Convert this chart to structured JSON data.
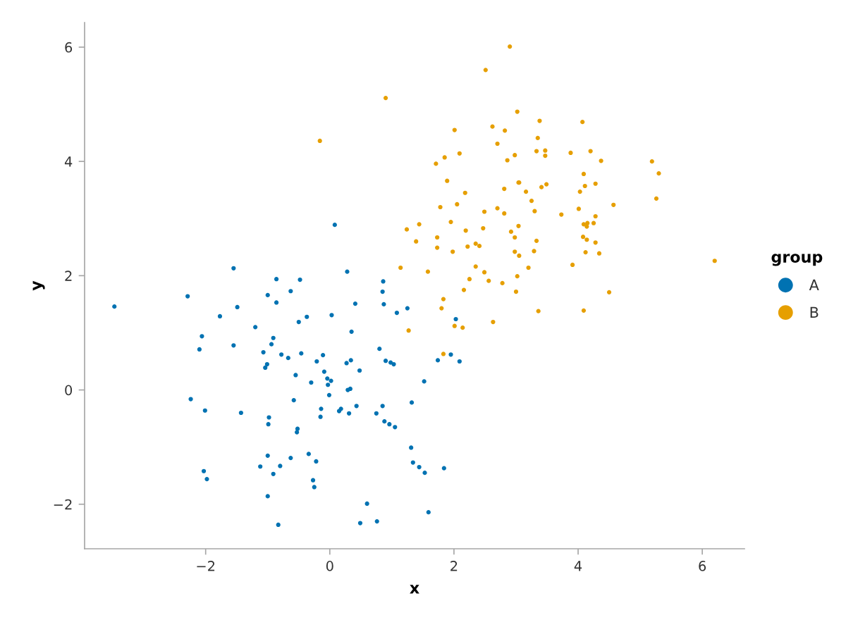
{
  "chart_data": {
    "type": "scatter",
    "xlabel": "x",
    "ylabel": "y",
    "legend_title": "group",
    "legend": "right",
    "marker": "circle",
    "xlim": [
      -3.95,
      6.68
    ],
    "ylim": [
      -2.78,
      6.43
    ],
    "xticks": [
      {
        "value": -2,
        "label": "−2"
      },
      0,
      2,
      4,
      6
    ],
    "yticks": [
      {
        "value": -2,
        "label": "−2"
      },
      0,
      2,
      4,
      6
    ],
    "series": [
      {
        "name": "A",
        "color": "#0072b2",
        "x": [
          -1.55,
          -0.86,
          -2.29,
          -1.0,
          -0.86,
          -3.47,
          -1.49,
          -1.77,
          -1.2,
          -2.06,
          -0.91,
          -0.94,
          -2.1,
          -1.55,
          -1.07,
          -0.78,
          -1.01,
          -1.04,
          -2.24,
          -2.01,
          -1.43,
          -0.98,
          -0.99,
          -1.0,
          -1.12,
          -0.8,
          -2.03,
          -0.91,
          -1.98,
          -1.0,
          -0.83,
          -0.48,
          0.28,
          -0.63,
          0.86,
          0.85,
          0.41,
          0.87,
          0.03,
          -0.37,
          -0.5,
          0.35,
          0.8,
          -0.67,
          -0.46,
          -0.11,
          -0.21,
          0.34,
          0.27,
          0.9,
          0.98,
          1.03,
          0.48,
          -0.09,
          -0.55,
          -0.04,
          0.02,
          -0.3,
          -0.03,
          0.33,
          0.29,
          -0.01,
          -0.58,
          -0.14,
          0.18,
          0.15,
          0.43,
          0.31,
          -0.15,
          0.85,
          0.75,
          0.88,
          0.96,
          1.05,
          -0.52,
          -0.53,
          -0.63,
          -0.34,
          -0.22,
          -0.27,
          -0.25,
          0.6,
          0.49,
          0.76,
          0.08,
          1.08,
          1.25,
          2.03,
          1.74,
          1.95,
          2.09,
          1.52,
          1.32,
          1.31,
          1.34,
          1.44,
          1.53,
          1.84,
          1.59
        ],
        "values": [
          2.13,
          1.94,
          1.64,
          1.66,
          1.53,
          1.46,
          1.45,
          1.29,
          1.1,
          0.94,
          0.91,
          0.8,
          0.71,
          0.78,
          0.66,
          0.62,
          0.45,
          0.39,
          -0.16,
          -0.36,
          -0.4,
          -0.48,
          -0.6,
          -1.15,
          -1.34,
          -1.33,
          -1.42,
          -1.47,
          -1.56,
          -1.86,
          -2.36,
          1.93,
          2.07,
          1.73,
          1.9,
          1.72,
          1.51,
          1.5,
          1.31,
          1.28,
          1.19,
          1.02,
          0.72,
          0.56,
          0.64,
          0.61,
          0.5,
          0.52,
          0.47,
          0.51,
          0.48,
          0.45,
          0.34,
          0.32,
          0.26,
          0.2,
          0.16,
          0.13,
          0.09,
          0.02,
          0.0,
          -0.09,
          -0.18,
          -0.33,
          -0.33,
          -0.37,
          -0.28,
          -0.41,
          -0.47,
          -0.28,
          -0.41,
          -0.55,
          -0.6,
          -0.65,
          -0.68,
          -0.74,
          -1.19,
          -1.12,
          -1.25,
          -1.58,
          -1.7,
          -1.99,
          -2.33,
          -2.3,
          2.89,
          1.35,
          1.43,
          1.24,
          0.52,
          0.62,
          0.5,
          0.15,
          -0.22,
          -1.01,
          -1.27,
          -1.35,
          -1.45,
          -1.37,
          -2.14
        ]
      },
      {
        "name": "B",
        "color": "#e69f00",
        "x": [
          2.51,
          0.9,
          -0.16,
          2.01,
          2.62,
          2.82,
          2.7,
          2.09,
          1.85,
          1.71,
          2.86,
          1.89,
          2.18,
          2.81,
          1.78,
          2.05,
          2.49,
          2.7,
          2.81,
          1.95,
          2.47,
          2.19,
          1.44,
          1.24,
          1.73,
          1.39,
          1.73,
          1.98,
          2.22,
          2.35,
          2.41,
          1.14,
          1.58,
          2.35,
          2.49,
          2.25,
          2.56,
          2.78,
          2.16,
          1.83,
          1.8,
          2.01,
          2.14,
          2.63,
          1.27,
          1.83,
          2.9,
          3.02,
          3.38,
          4.07,
          3.35,
          3.33,
          3.47,
          3.47,
          2.98,
          3.88,
          4.2,
          4.37,
          4.09,
          3.05,
          3.04,
          3.49,
          3.41,
          3.16,
          4.11,
          4.28,
          4.03,
          3.25,
          3.3,
          3.73,
          4.01,
          4.57,
          4.28,
          4.09,
          4.15,
          4.14,
          4.25,
          3.04,
          2.92,
          2.98,
          3.33,
          4.08,
          4.14,
          4.28,
          2.98,
          3.05,
          3.29,
          4.12,
          4.34,
          3.2,
          3.91,
          3.02,
          3.0,
          4.5,
          3.36,
          4.09,
          5.19,
          5.3,
          5.26,
          6.2
        ],
        "values": [
          5.6,
          5.11,
          4.36,
          4.55,
          4.61,
          4.54,
          4.31,
          4.14,
          4.07,
          3.96,
          4.02,
          3.66,
          3.45,
          3.52,
          3.2,
          3.25,
          3.12,
          3.18,
          3.09,
          2.94,
          2.83,
          2.79,
          2.9,
          2.81,
          2.67,
          2.6,
          2.49,
          2.42,
          2.51,
          2.56,
          2.52,
          2.14,
          2.07,
          2.16,
          2.06,
          1.94,
          1.91,
          1.87,
          1.75,
          1.59,
          1.43,
          1.12,
          1.09,
          1.19,
          1.04,
          0.63,
          6.01,
          4.87,
          4.71,
          4.69,
          4.41,
          4.18,
          4.19,
          4.1,
          4.11,
          4.15,
          4.18,
          4.01,
          3.78,
          3.63,
          3.63,
          3.6,
          3.55,
          3.47,
          3.57,
          3.61,
          3.47,
          3.31,
          3.13,
          3.07,
          3.17,
          3.24,
          3.04,
          2.9,
          2.92,
          2.86,
          2.92,
          2.87,
          2.77,
          2.67,
          2.61,
          2.68,
          2.63,
          2.58,
          2.42,
          2.35,
          2.43,
          2.41,
          2.39,
          2.14,
          2.19,
          1.99,
          1.72,
          1.71,
          1.38,
          1.39,
          4.0,
          3.79,
          3.35,
          2.26
        ]
      }
    ]
  }
}
